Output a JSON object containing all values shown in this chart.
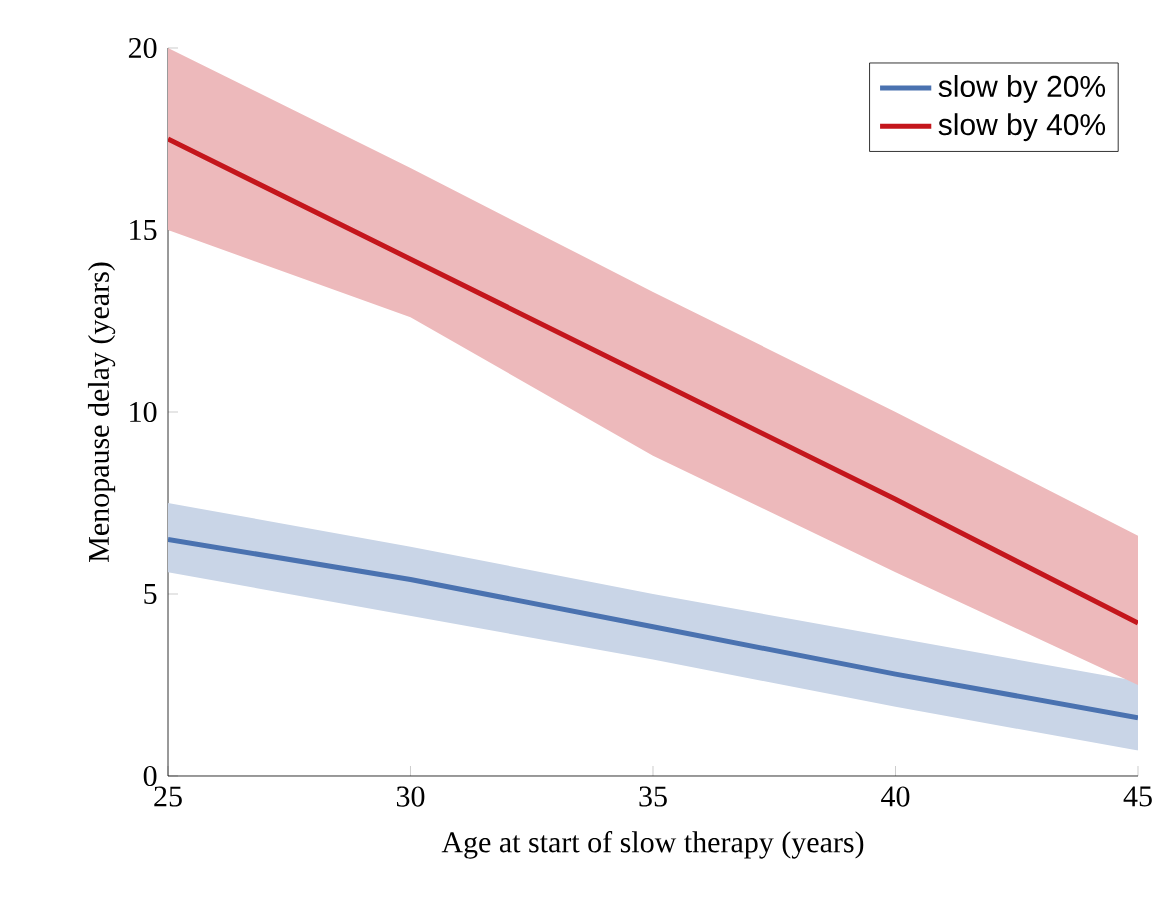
{
  "chart_data": {
    "type": "line",
    "xlabel": "Age at start of slow therapy (years)",
    "ylabel": "Menopause delay (years)",
    "x": [
      25,
      30,
      35,
      40,
      45
    ],
    "series": [
      {
        "name": "slow by 20%",
        "color": "#4a72b0",
        "values": [
          6.5,
          5.4,
          4.1,
          2.8,
          1.6
        ],
        "lower": [
          5.6,
          4.4,
          3.2,
          1.9,
          0.7
        ],
        "upper": [
          7.5,
          6.3,
          5.0,
          3.8,
          2.6
        ]
      },
      {
        "name": "slow by 40%",
        "color": "#c4161c",
        "values": [
          17.5,
          14.2,
          10.9,
          7.6,
          4.2
        ],
        "lower": [
          15.0,
          12.6,
          8.8,
          5.6,
          2.5
        ],
        "upper": [
          20.0,
          16.7,
          13.3,
          10.0,
          6.6
        ]
      }
    ],
    "xlim": [
      25,
      45
    ],
    "ylim": [
      0,
      20
    ],
    "xticks": [
      25,
      30,
      35,
      40,
      45
    ],
    "yticks": [
      0,
      5,
      10,
      15,
      20
    ],
    "legend": "top right",
    "grid": false,
    "marker": "none",
    "line_style": "solid"
  }
}
